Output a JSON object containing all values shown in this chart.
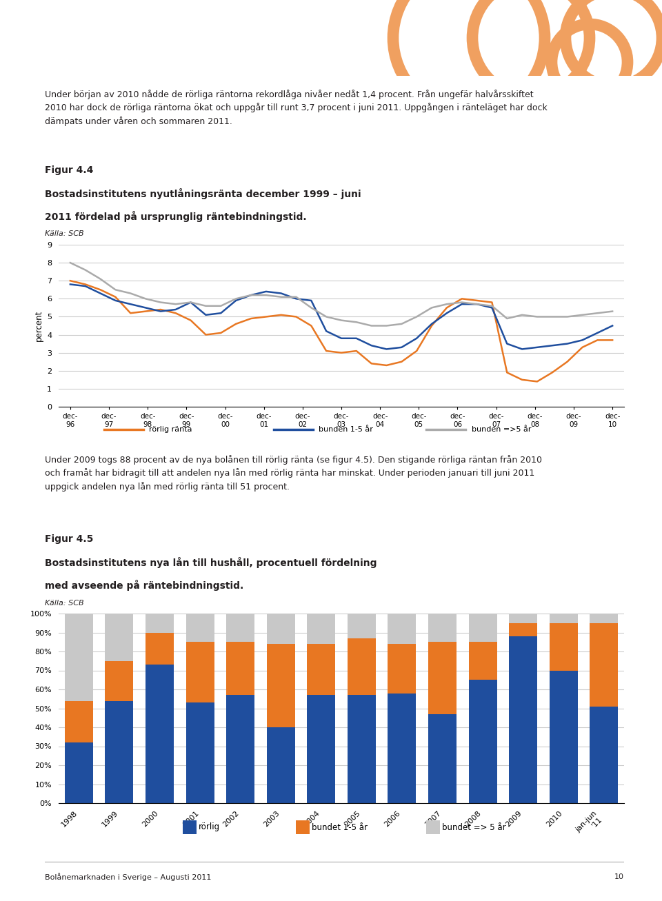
{
  "fig44_title_line1": "Figur 4.4",
  "fig44_title_line2": "Bostadsinstitutens nyutlåningsränta december 1999 – juni",
  "fig44_title_line3": "2011 fördelad på ursprunglig räntebindningstid.",
  "fig44_source": "Källa: SCB",
  "fig44_ylabel": "percent",
  "fig44_ylim": [
    0,
    9
  ],
  "fig44_yticks": [
    0,
    1,
    2,
    3,
    4,
    5,
    6,
    7,
    8,
    9
  ],
  "rorlig_ranta": [
    7.0,
    6.8,
    6.5,
    6.1,
    5.2,
    5.3,
    5.4,
    5.2,
    4.8,
    4.0,
    4.1,
    4.6,
    4.9,
    5.0,
    5.1,
    5.0,
    4.5,
    3.1,
    3.0,
    3.1,
    2.4,
    2.3,
    2.5,
    3.1,
    4.5,
    5.5,
    6.0,
    5.9,
    5.8,
    1.9,
    1.5,
    1.4,
    1.9,
    2.5,
    3.3,
    3.7,
    3.7
  ],
  "bunden_1_5": [
    6.8,
    6.7,
    6.3,
    5.9,
    5.7,
    5.5,
    5.3,
    5.4,
    5.8,
    5.1,
    5.2,
    5.9,
    6.2,
    6.4,
    6.3,
    6.0,
    5.9,
    4.2,
    3.8,
    3.8,
    3.4,
    3.2,
    3.3,
    3.8,
    4.6,
    5.2,
    5.7,
    5.7,
    5.5,
    3.5,
    3.2,
    3.3,
    3.4,
    3.5,
    3.7,
    4.1,
    4.5
  ],
  "bunden_5plus": [
    8.0,
    7.6,
    7.1,
    6.5,
    6.3,
    6.0,
    5.8,
    5.7,
    5.8,
    5.6,
    5.6,
    6.0,
    6.2,
    6.2,
    6.1,
    6.1,
    5.5,
    5.0,
    4.8,
    4.7,
    4.5,
    4.5,
    4.6,
    5.0,
    5.5,
    5.7,
    5.8,
    5.7,
    5.6,
    4.9,
    5.1,
    5.0,
    5.0,
    5.0,
    5.1,
    5.2,
    5.3
  ],
  "fig44_color_rorlig": "#E87722",
  "fig44_color_bunden15": "#1F4E9E",
  "fig44_color_bunden5plus": "#AAAAAA",
  "fig44_legend_labels": [
    "rörlig ränta",
    "bunden 1-5 år",
    "bunden =>5 år"
  ],
  "fig45_title_line1": "Figur 4.5",
  "fig45_title_line2": "Bostadsinstitutens nya lån till hushåll, procentuell fördelning",
  "fig45_title_line3": "med avseende på räntebindningstid.",
  "fig45_source": "Källa: SCB",
  "fig45_categories": [
    "1998",
    "1999",
    "2000",
    "2001",
    "2002",
    "2003",
    "2004",
    "2005",
    "2006",
    "2007",
    "2008",
    "2009",
    "2010",
    "jan-jun\n'11"
  ],
  "fig45_rorlig_all": [
    32,
    54,
    73,
    53,
    57,
    40,
    57,
    57,
    58,
    47,
    65,
    88,
    70,
    51
  ],
  "fig45_bunden15_all": [
    22,
    21,
    17,
    32,
    28,
    44,
    27,
    30,
    26,
    38,
    20,
    7,
    25,
    44
  ],
  "fig45_bunden5p_all": [
    46,
    25,
    10,
    15,
    15,
    16,
    16,
    13,
    16,
    15,
    15,
    5,
    5,
    5
  ],
  "fig45_color_rorlig": "#1F4E9E",
  "fig45_color_bunden15": "#E87722",
  "fig45_color_bunden5p": "#C8C8C8",
  "fig45_legend_labels": [
    "rörlig",
    "bundet 1-5 år",
    "bundet => 5 år"
  ],
  "bg_color": "#FFFFFF",
  "text_color": "#231F20",
  "header_bg": "#E87722",
  "header_circle_color": "#F0A060",
  "body_text_1": "Under början av 2010 nådde de rörliga räntorna rekordlåga nivåer nedåt 1,4 procent. Från ungefär halvårsskiftet\n2010 har dock de rörliga räntorna ökat och uppgår till runt 3,7 procent i juni 2011. Uppgången i ränteläget har dock\ndämpats under våren och sommaren 2011.",
  "body_text_2": "Under 2009 togs 88 procent av de nya bolånen till rörlig ränta (se figur 4.5). Den stigande rörliga räntan från 2010\noch framåt har bidragit till att andelen nya lån med rörlig ränta har minskat. Under perioden januari till juni 2011\nuppgick andelen nya lån med rörlig ränta till 51 procent.",
  "footer_text": "Bolånemarknaden i Sverige – Augusti 2011",
  "page_number": "10"
}
